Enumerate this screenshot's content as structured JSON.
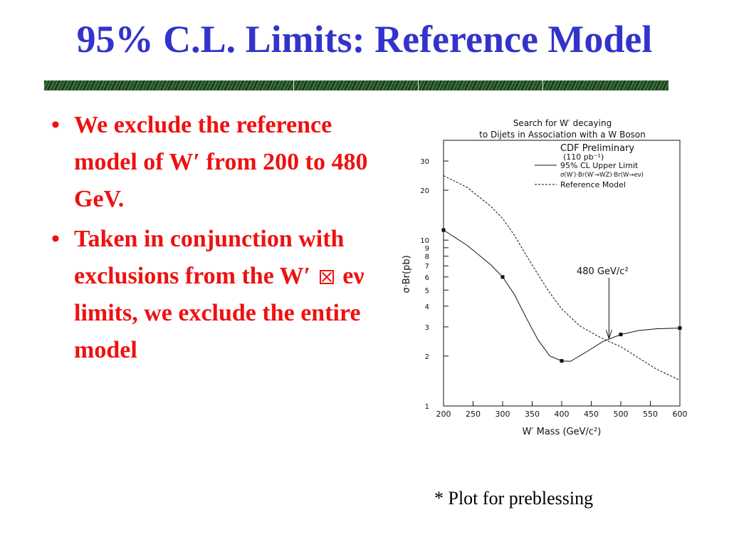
{
  "slide": {
    "title": "95% C.L. Limits: Reference Model",
    "bullets": [
      {
        "text": "We exclude the reference model of W′ from 200 to 480 GeV."
      },
      {
        "pre": "Taken in conjunction with exclusions from the W′",
        "post": "eν limits, we exclude the entire model"
      }
    ],
    "note": "* Plot for preblessing"
  },
  "chart_data": {
    "type": "line",
    "title": "Search for W′ decaying",
    "subtitle": "to Dijets in Association with a W Boson",
    "xlabel": "W′ Mass (GeV/c²)",
    "ylabel": "σ·Br(pb)",
    "xlim": [
      200,
      600
    ],
    "ylim": [
      1,
      40
    ],
    "yscale": "log",
    "xticks": [
      "200",
      "250",
      "300",
      "350",
      "400",
      "450",
      "500",
      "550",
      "600"
    ],
    "yticks": [
      {
        "v": 1,
        "label": "1"
      },
      {
        "v": 2,
        "label": "2"
      },
      {
        "v": 3,
        "label": "3"
      },
      {
        "v": 4,
        "label": "4"
      },
      {
        "v": 5,
        "label": "5"
      },
      {
        "v": 6,
        "label": "6"
      },
      {
        "v": 7,
        "label": "7"
      },
      {
        "v": 8,
        "label": "8"
      },
      {
        "v": 9,
        "label": "9"
      },
      {
        "v": 10,
        "label": "10"
      },
      {
        "v": 20,
        "label": "20"
      },
      {
        "v": 30,
        "label": "30"
      }
    ],
    "legend": {
      "lines": [
        "CDF Preliminary",
        "(110 pb⁻¹)"
      ],
      "entries": [
        {
          "label": "95% CL Upper Limit",
          "sub": "σ(W′)·Br(W′→WZ)·Br(W→eν)",
          "style": "solid"
        },
        {
          "label": "Reference Model",
          "style": "dashed"
        }
      ],
      "position": "top-right"
    },
    "series": [
      {
        "name": "95% CL Upper Limit",
        "style": "solid",
        "points": [
          [
            200,
            11.5
          ],
          [
            300,
            6.0
          ],
          [
            400,
            1.87
          ],
          [
            500,
            2.7
          ],
          [
            600,
            2.95
          ]
        ],
        "curve": [
          [
            200,
            11.5
          ],
          [
            240,
            9.3
          ],
          [
            280,
            7.1
          ],
          [
            300,
            6.0
          ],
          [
            320,
            4.7
          ],
          [
            340,
            3.4
          ],
          [
            360,
            2.5
          ],
          [
            380,
            2.0
          ],
          [
            400,
            1.87
          ],
          [
            415,
            1.86
          ],
          [
            440,
            2.1
          ],
          [
            470,
            2.45
          ],
          [
            500,
            2.7
          ],
          [
            530,
            2.85
          ],
          [
            560,
            2.92
          ],
          [
            600,
            2.95
          ]
        ]
      },
      {
        "name": "Reference Model",
        "style": "dashed",
        "curve": [
          [
            200,
            24.5
          ],
          [
            240,
            20.8
          ],
          [
            280,
            16.0
          ],
          [
            300,
            13.5
          ],
          [
            320,
            10.7
          ],
          [
            340,
            8.1
          ],
          [
            360,
            6.2
          ],
          [
            380,
            4.8
          ],
          [
            400,
            3.85
          ],
          [
            430,
            3.05
          ],
          [
            460,
            2.65
          ],
          [
            480,
            2.45
          ],
          [
            500,
            2.28
          ],
          [
            530,
            1.95
          ],
          [
            560,
            1.67
          ],
          [
            600,
            1.43
          ]
        ]
      }
    ],
    "annotation": {
      "text": "480 GeV/c²",
      "x": 480,
      "y": 2.5
    }
  }
}
